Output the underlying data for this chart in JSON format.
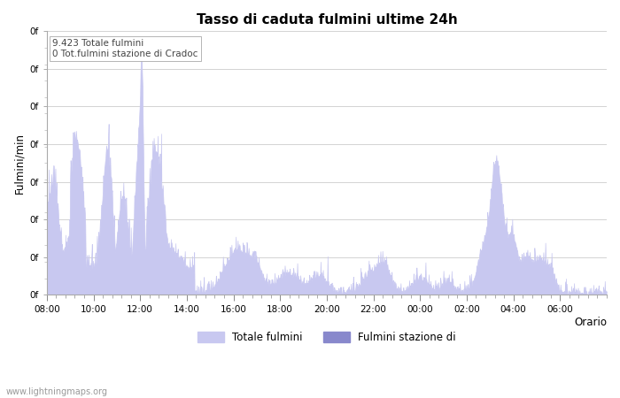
{
  "title": "Tasso di caduta fulmini ultime 24h",
  "xlabel": "Orario",
  "ylabel": "Fulmini/min",
  "annotation_line1": "9.423 Totale fulmini",
  "annotation_line2": "0 Tot.fulmini stazione di Cradoc",
  "x_tick_labels": [
    "08:00",
    "10:00",
    "12:00",
    "14:00",
    "16:00",
    "18:00",
    "20:00",
    "22:00",
    "00:00",
    "02:00",
    "04:00",
    "06:00"
  ],
  "fill_color_total": "#c8c8f0",
  "fill_color_station": "#8888cc",
  "background_color": "#ffffff",
  "grid_color": "#cccccc",
  "watermark": "www.lightningmaps.org",
  "legend_label_total": "Totale fulmini",
  "legend_label_station": "Fulmini stazione di",
  "ytick_label": "0f",
  "title_fontsize": 11,
  "n_yticks": 8
}
